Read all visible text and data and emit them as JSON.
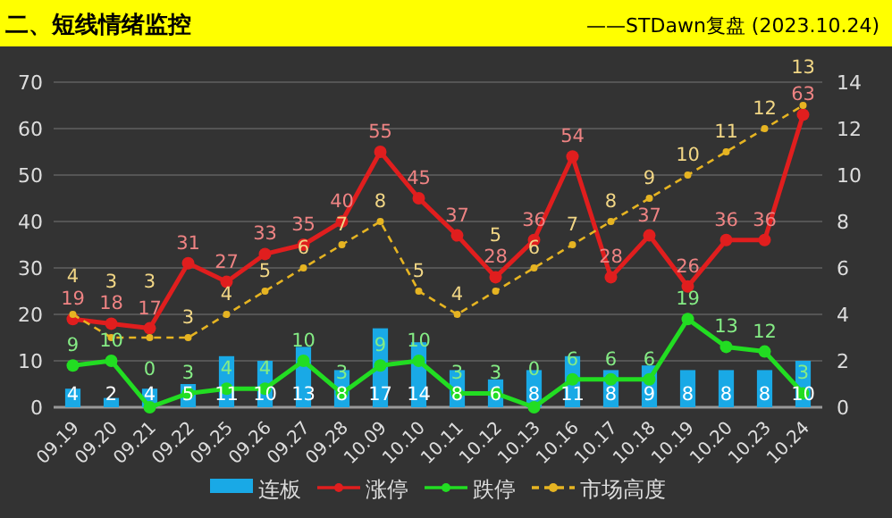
{
  "chart_data": {
    "type": "bar",
    "title": "二、短线情绪监控",
    "subtitle": "——STDawn复盘 (2023.10.24)",
    "categories": [
      "09.19",
      "09.20",
      "09.21",
      "09.22",
      "09.25",
      "09.26",
      "09.27",
      "09.28",
      "10.09",
      "10.10",
      "10.11",
      "10.12",
      "10.13",
      "10.16",
      "10.17",
      "10.18",
      "10.19",
      "10.20",
      "10.23",
      "10.24"
    ],
    "series": [
      {
        "name": "连板",
        "color": "#19a9e6",
        "values": [
          4,
          2,
          4,
          5,
          11,
          10,
          13,
          8,
          17,
          14,
          8,
          6,
          8,
          11,
          8,
          9,
          8,
          8,
          8,
          10
        ]
      },
      {
        "name": "涨停",
        "type": "line",
        "color": "#e01e1e",
        "marker": "circle",
        "line_style": "solid",
        "values": [
          19,
          18,
          17,
          31,
          27,
          33,
          35,
          40,
          55,
          45,
          37,
          28,
          36,
          54,
          28,
          37,
          26,
          36,
          36,
          63
        ]
      },
      {
        "name": "跌停",
        "type": "line",
        "color": "#22dd22",
        "marker": "circle",
        "line_style": "solid",
        "values": [
          9,
          10,
          0,
          3,
          4,
          4,
          10,
          3,
          9,
          10,
          3,
          3,
          0,
          6,
          6,
          6,
          19,
          13,
          12,
          3
        ]
      },
      {
        "name": "市场高度",
        "type": "line",
        "axis": "y2",
        "color": "#e6b422",
        "marker": "circle",
        "line_style": "dashed",
        "values": [
          4,
          3,
          3,
          3,
          4,
          5,
          6,
          7,
          8,
          5,
          4,
          5,
          6,
          7,
          8,
          9,
          10,
          11,
          12,
          13
        ]
      }
    ],
    "ylim": [
      0,
      70
    ],
    "yticks": [
      0,
      10,
      20,
      30,
      40,
      50,
      60,
      70
    ],
    "y2lim": [
      0,
      14
    ],
    "y2ticks": [
      0,
      2,
      4,
      6,
      8,
      10,
      12,
      14
    ],
    "grid": "y",
    "legend": "bottom",
    "data_labels": true
  }
}
